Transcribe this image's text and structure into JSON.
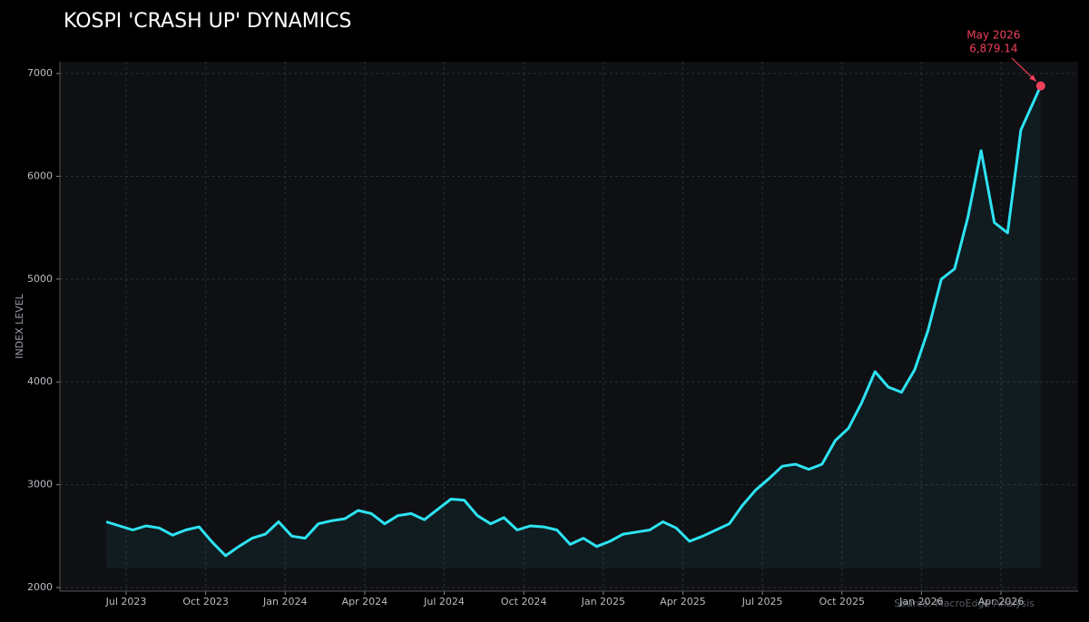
{
  "chart_data": {
    "type": "line",
    "title": "KOSPI 'CRASH UP' DYNAMICS",
    "y_label": "INDEX LEVEL",
    "source": "Source: MacroEdge Analysis",
    "color": "#2ee3f2",
    "marker_color": "#f0405a",
    "grid": true,
    "x": [
      "2023-06",
      "2023-06",
      "2023-07",
      "2023-07",
      "2023-08",
      "2023-08",
      "2023-09",
      "2023-09",
      "2023-10",
      "2023-10",
      "2023-11",
      "2023-11",
      "2023-12",
      "2023-12",
      "2024-01",
      "2024-01",
      "2024-02",
      "2024-02",
      "2024-03",
      "2024-03",
      "2024-04",
      "2024-04",
      "2024-05",
      "2024-05",
      "2024-06",
      "2024-06",
      "2024-07",
      "2024-07",
      "2024-08",
      "2024-08",
      "2024-09",
      "2024-09",
      "2024-10",
      "2024-10",
      "2024-11",
      "2024-11",
      "2024-12",
      "2024-12",
      "2025-01",
      "2025-01",
      "2025-02",
      "2025-02",
      "2025-03",
      "2025-03",
      "2025-04",
      "2025-04",
      "2025-05",
      "2025-05",
      "2025-06",
      "2025-06",
      "2025-07",
      "2025-07",
      "2025-08",
      "2025-08",
      "2025-09",
      "2025-09",
      "2025-10",
      "2025-10",
      "2025-11",
      "2025-11",
      "2025-12",
      "2025-12",
      "2026-01",
      "2026-01",
      "2026-02",
      "2026-02",
      "2026-03",
      "2026-03",
      "2026-04",
      "2026-04",
      "2026-05"
    ],
    "values": [
      2640,
      2600,
      2560,
      2600,
      2580,
      2510,
      2560,
      2590,
      2440,
      2310,
      2400,
      2480,
      2520,
      2640,
      2500,
      2480,
      2620,
      2650,
      2670,
      2750,
      2720,
      2620,
      2700,
      2720,
      2660,
      2760,
      2860,
      2850,
      2700,
      2620,
      2680,
      2560,
      2600,
      2590,
      2560,
      2420,
      2480,
      2400,
      2450,
      2520,
      2540,
      2560,
      2640,
      2580,
      2450,
      2500,
      2560,
      2620,
      2800,
      2950,
      3060,
      3180,
      3200,
      3150,
      3200,
      3430,
      3550,
      3800,
      4100,
      3950,
      3900,
      4120,
      4500,
      5000,
      5100,
      5600,
      6250,
      5550,
      5450,
      6450,
      6879.14
    ],
    "annotation": {
      "label": "May 2026",
      "value_label": "6,879.14"
    },
    "xlim": [
      "2023-05",
      "2026-06"
    ],
    "xticks": [
      {
        "value": "2023-07",
        "label": "Jul 2023"
      },
      {
        "value": "2023-10",
        "label": "Oct 2023"
      },
      {
        "value": "2024-01",
        "label": "Jan 2024"
      },
      {
        "value": "2024-04",
        "label": "Apr 2024"
      },
      {
        "value": "2024-07",
        "label": "Jul 2024"
      },
      {
        "value": "2024-10",
        "label": "Oct 2024"
      },
      {
        "value": "2025-01",
        "label": "Jan 2025"
      },
      {
        "value": "2025-04",
        "label": "Apr 2025"
      },
      {
        "value": "2025-07",
        "label": "Jul 2025"
      },
      {
        "value": "2025-10",
        "label": "Oct 2025"
      },
      {
        "value": "2026-01",
        "label": "Jan 2026"
      },
      {
        "value": "2026-04",
        "label": "Apr 2026"
      }
    ],
    "ylim": [
      1965,
      7115
    ],
    "yticks": [
      2000,
      3000,
      4000,
      5000,
      6000,
      7000
    ]
  }
}
